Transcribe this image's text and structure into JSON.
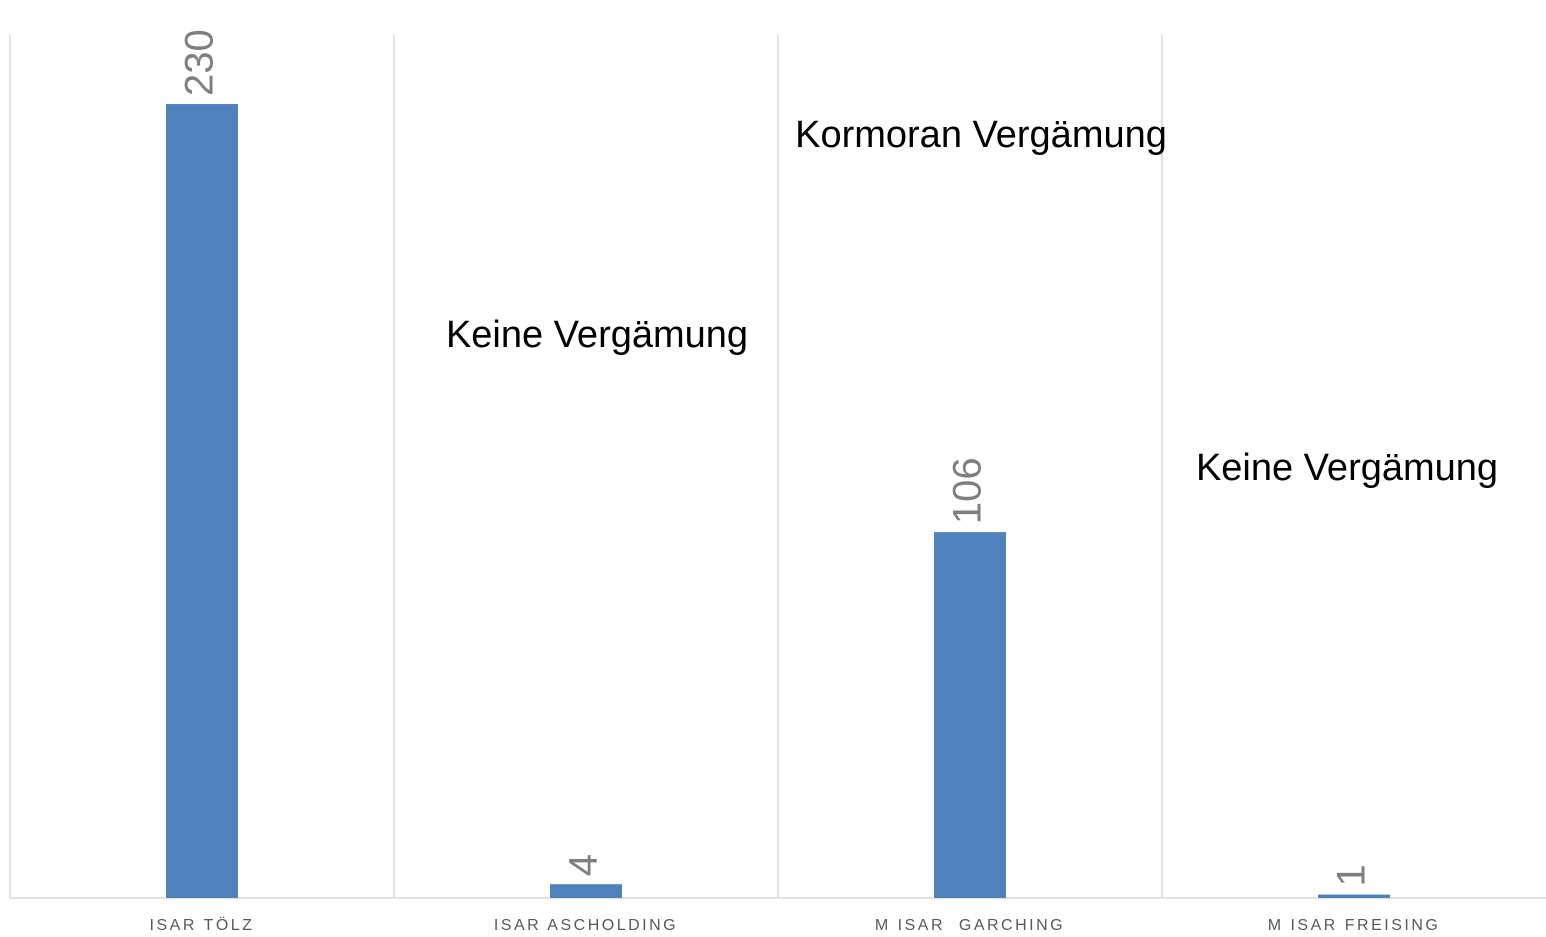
{
  "chart_data": {
    "type": "bar",
    "categories": [
      "ISAR TÖLZ",
      "ISAR ASCHOLDING",
      "M ISAR  GARCHING",
      "M ISAR FREISING"
    ],
    "values": [
      230,
      4,
      106,
      1
    ],
    "color": "#4f81bd",
    "ylim": [
      0,
      250
    ],
    "annotations": [
      "Kormoran Vergämung",
      "Keine Vergämung",
      "Keine Vergämung"
    ]
  }
}
